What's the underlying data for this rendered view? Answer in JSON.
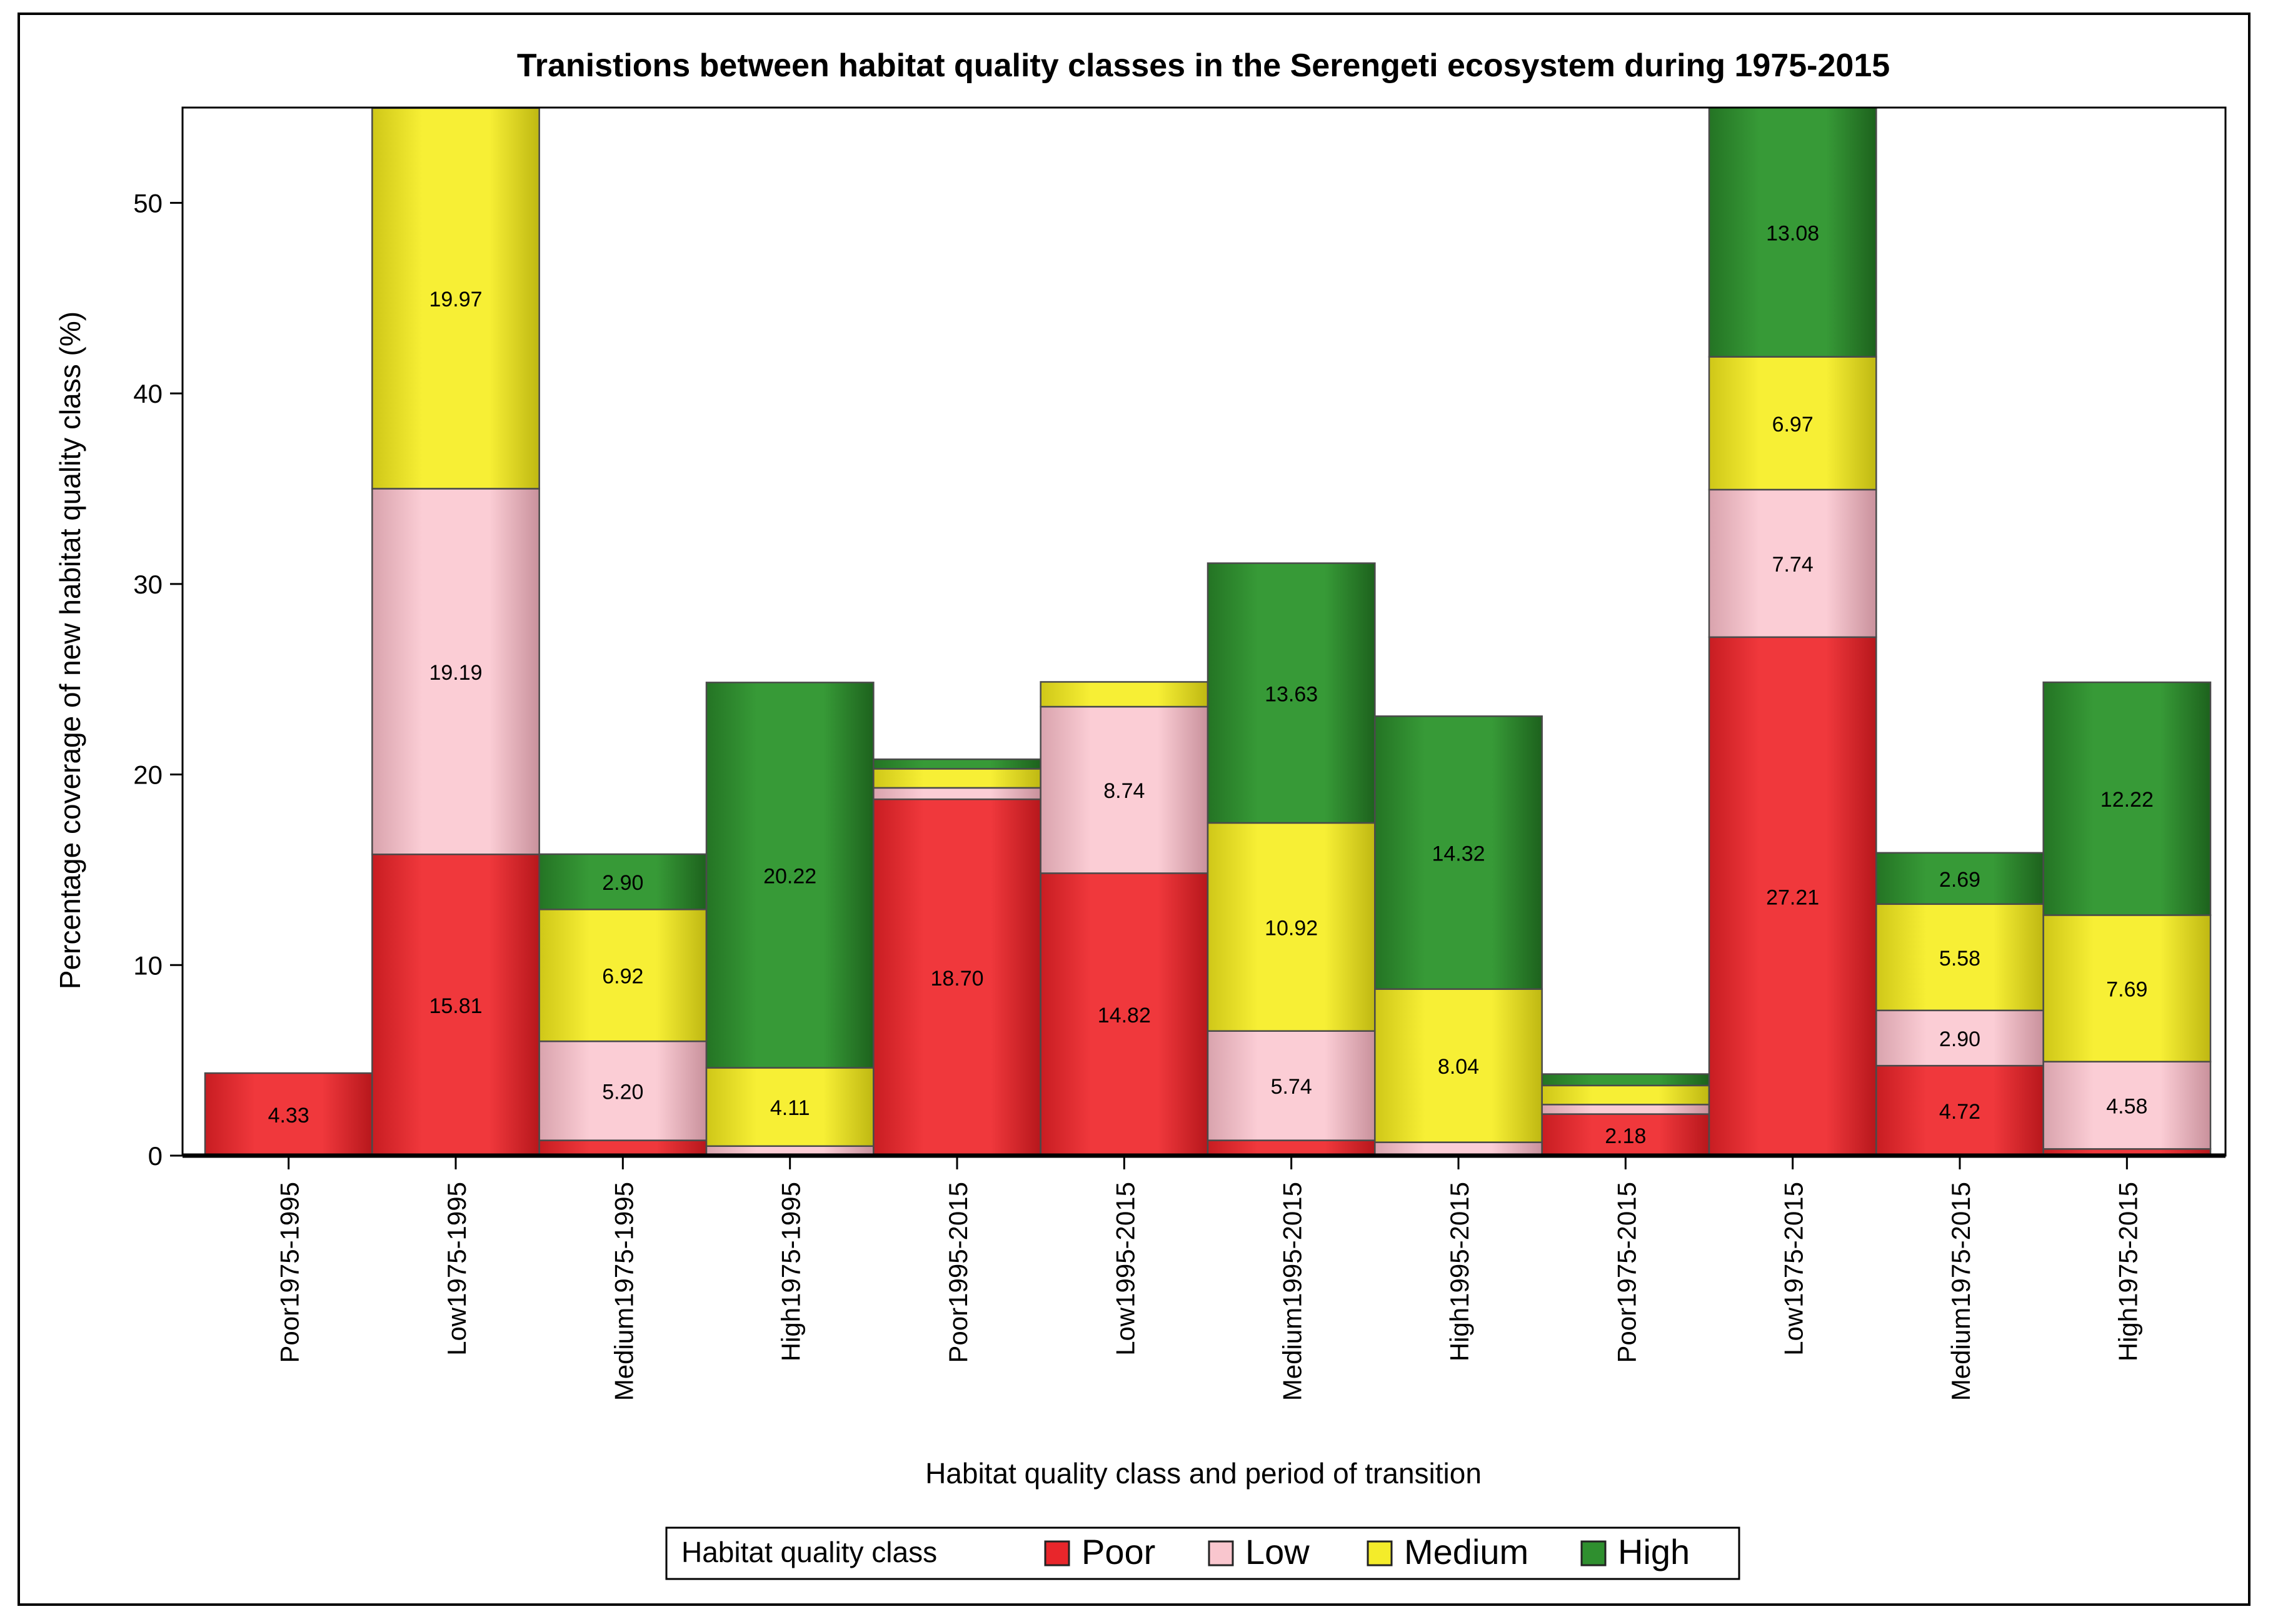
{
  "chart_data": {
    "type": "bar",
    "stacked": true,
    "title": "Tranistions between habitat quality classes in the Serengeti ecosystem during 1975-2015",
    "xlabel": "Habitat quality class and period of transition",
    "ylabel": "Percentage coverage of new habitat quality class (%)",
    "ylim": [
      0,
      55
    ],
    "yticks": [
      0,
      10,
      20,
      30,
      40,
      50
    ],
    "grid": false,
    "categories": [
      "Poor1975-1995",
      "Low1975-1995",
      "Medium1975-1995",
      "High1975-1995",
      "Poor1995-2015",
      "Low1995-2015",
      "Medium1995-2015",
      "High1995-2015",
      "Poor1975-2015",
      "Low1975-2015",
      "Medium1975-2015",
      "High1975-2015"
    ],
    "series": [
      {
        "name": "Poor",
        "color": "#e8262b",
        "values": [
          4.33,
          15.81,
          0.8,
          0.0,
          18.7,
          14.82,
          0.8,
          0.0,
          2.18,
          27.21,
          4.72,
          0.35
        ],
        "labels": [
          "4.33",
          "15.81",
          "",
          "",
          "18.70",
          "14.82",
          "",
          "",
          "2.18",
          "27.21",
          "4.72",
          ""
        ]
      },
      {
        "name": "Low",
        "color": "#f9c6ce",
        "values": [
          0.0,
          19.19,
          5.2,
          0.5,
          0.6,
          8.74,
          5.74,
          0.7,
          0.5,
          7.74,
          2.9,
          4.58
        ],
        "labels": [
          "",
          "19.19",
          "5.20",
          "",
          "",
          "8.74",
          "5.74",
          "",
          "",
          "7.74",
          "2.90",
          "4.58"
        ]
      },
      {
        "name": "Medium",
        "color": "#f4ec2a",
        "values": [
          0.0,
          19.97,
          6.92,
          4.11,
          1.0,
          1.3,
          10.92,
          8.04,
          1.0,
          6.97,
          5.58,
          7.69
        ],
        "labels": [
          "",
          "19.97",
          "6.92",
          "4.11",
          "",
          "",
          "10.92",
          "8.04",
          "",
          "6.97",
          "5.58",
          "7.69"
        ]
      },
      {
        "name": "High",
        "color": "#2f8f2f",
        "values": [
          0.0,
          0.0,
          2.9,
          20.22,
          0.5,
          0.0,
          13.63,
          14.32,
          0.6,
          13.08,
          2.69,
          12.22
        ],
        "labels": [
          "",
          "",
          "2.90",
          "20.22",
          "",
          "",
          "13.63",
          "14.32",
          "",
          "13.08",
          "2.69",
          "12.22"
        ]
      }
    ],
    "legend": {
      "title": "Habitat quality class",
      "position": "bottom"
    }
  }
}
